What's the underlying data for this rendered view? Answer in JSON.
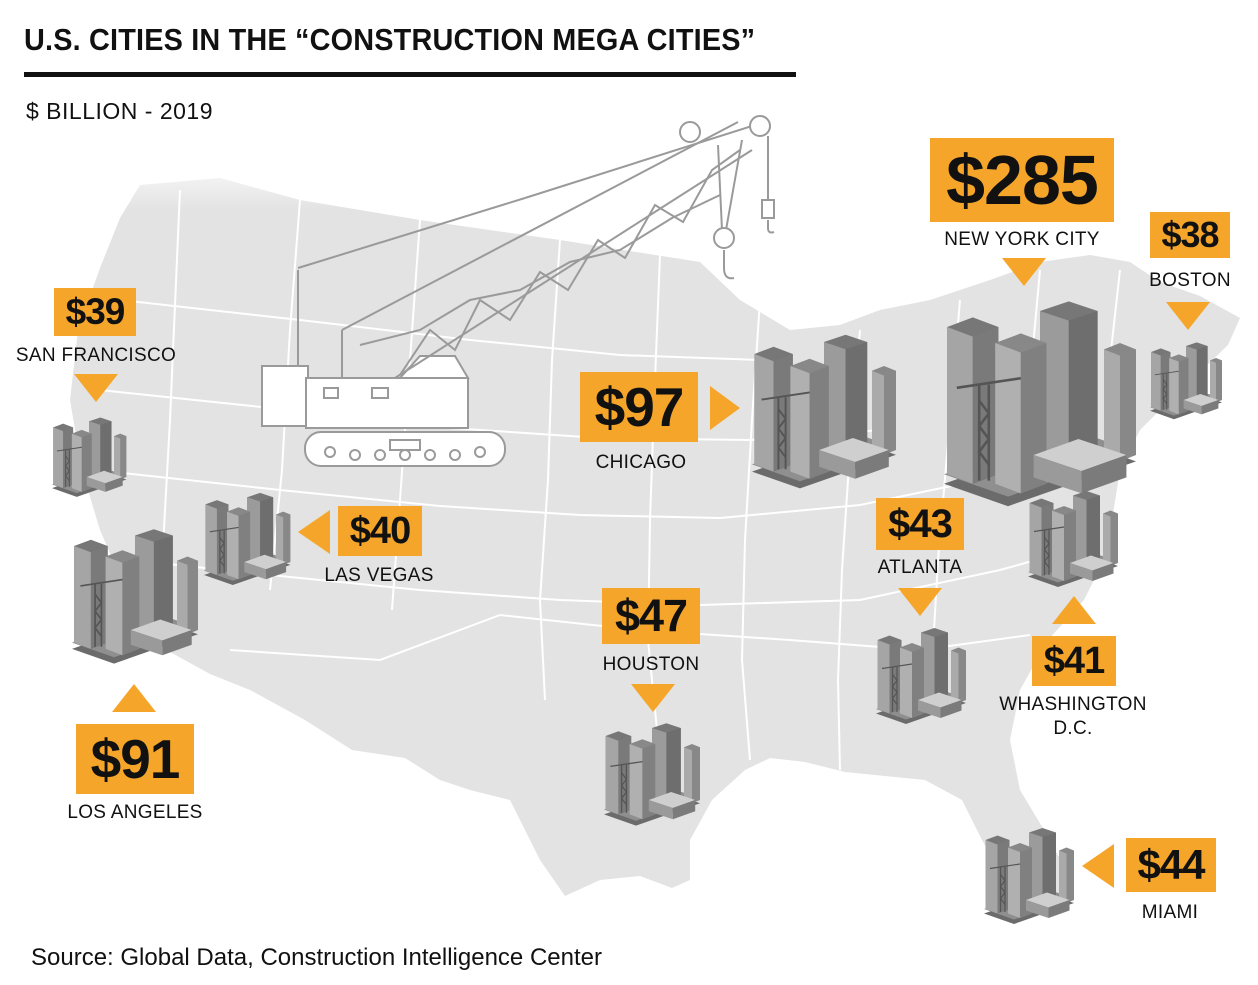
{
  "title": "U.S. CITIES IN THE “CONSTRUCTION MEGA CITIES”",
  "subtitle": "$ BILLION - 2019",
  "source": "Source: Global Data, Construction Intelligence Center",
  "colors": {
    "accent": "#f5a52a",
    "map_fill": "#e3e3e3",
    "map_lines": "#ffffff",
    "building": "#8a8a8a"
  },
  "icons": [
    "crane-icon",
    "building-cluster-icon",
    "triangle-pointer-icon"
  ],
  "cities": [
    {
      "name": "SAN FRANCISCO",
      "value": "$39",
      "amount": 39
    },
    {
      "name": "LOS ANGELES",
      "value": "$91",
      "amount": 91
    },
    {
      "name": "LAS VEGAS",
      "value": "$40",
      "amount": 40
    },
    {
      "name": "CHICAGO",
      "value": "$97",
      "amount": 97
    },
    {
      "name": "HOUSTON",
      "value": "$47",
      "amount": 47
    },
    {
      "name": "NEW YORK CITY",
      "value": "$285",
      "amount": 285
    },
    {
      "name": "BOSTON",
      "value": "$38",
      "amount": 38
    },
    {
      "name": "ATLANTA",
      "value": "$43",
      "amount": 43
    },
    {
      "name": "WHASHINGTON\nD.C.",
      "value": "$41",
      "amount": 41
    },
    {
      "name": "MIAMI",
      "value": "$44",
      "amount": 44
    }
  ]
}
